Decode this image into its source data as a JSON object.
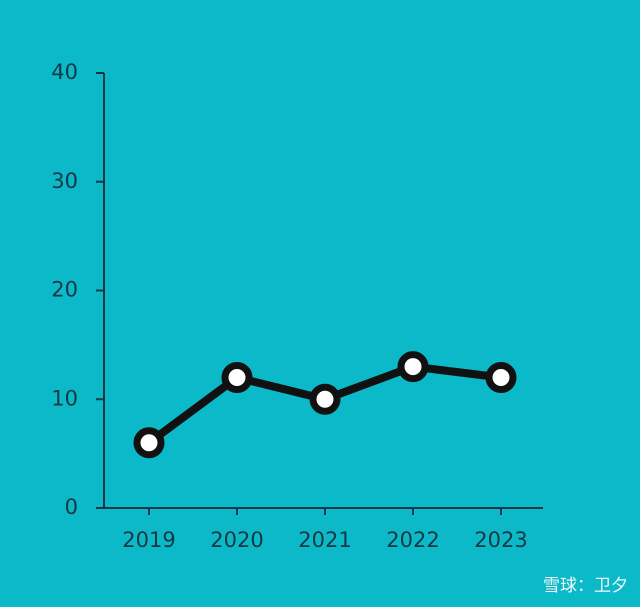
{
  "chart_data": {
    "type": "line",
    "categories": [
      "2019",
      "2020",
      "2021",
      "2022",
      "2023"
    ],
    "values": [
      6,
      12,
      10,
      13,
      12
    ],
    "color": "#111111",
    "ylim": [
      0,
      40
    ],
    "yticks": [
      0,
      10,
      20,
      30,
      40
    ],
    "grid": false
  },
  "watermark": "雪球：卫夕"
}
